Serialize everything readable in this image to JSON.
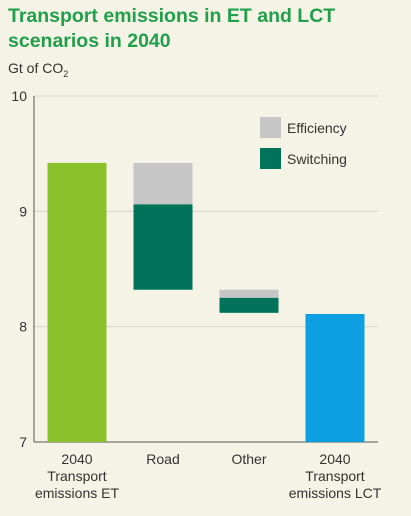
{
  "chart_data": {
    "type": "bar",
    "subtype": "waterfall",
    "title": "Transport emissions in ET and LCT scenarios in 2040",
    "unit_label": "Gt of CO",
    "unit_sub": "2",
    "ylim": [
      7,
      10
    ],
    "yticks": [
      7,
      8,
      9,
      10
    ],
    "grid": true,
    "legend_position": "top-right",
    "colors": {
      "et": "#8ac12a",
      "lct": "#0d9fe2",
      "efficiency": "#c6c6c6",
      "switching": "#00735a",
      "grid": "#d8d7cc",
      "axis": "#555555"
    },
    "legend": [
      {
        "name": "Efficiency",
        "key": "efficiency"
      },
      {
        "name": "Switching",
        "key": "switching"
      }
    ],
    "categories": [
      [
        "2040",
        "Transport",
        "emissions ET"
      ],
      [
        "Road"
      ],
      [
        "Other"
      ],
      [
        "2040",
        "Transport",
        "emissions LCT"
      ]
    ],
    "totals": [
      {
        "category_index": 0,
        "value": 9.42,
        "color_key": "et"
      },
      {
        "category_index": 3,
        "value": 8.11,
        "color_key": "lct"
      }
    ],
    "changes": [
      {
        "category_index": 1,
        "efficiency": -0.36,
        "switching": -0.74,
        "start": 9.42
      },
      {
        "category_index": 2,
        "efficiency": -0.07,
        "switching": -0.13,
        "start": 8.32
      }
    ]
  }
}
